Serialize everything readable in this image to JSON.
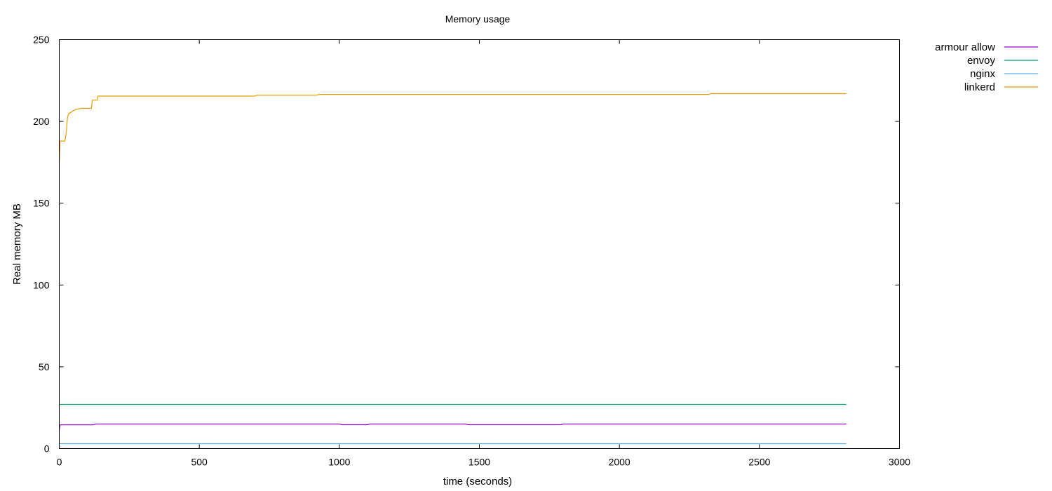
{
  "chart_data": {
    "type": "line",
    "title": "Memory usage",
    "xlabel": "time (seconds)",
    "ylabel": "Real memory MB",
    "xlim": [
      0,
      3000
    ],
    "ylim": [
      0,
      250
    ],
    "xticks": [
      0,
      500,
      1000,
      1500,
      2000,
      2500,
      3000
    ],
    "yticks": [
      0,
      50,
      100,
      150,
      200,
      250
    ],
    "grid": false,
    "legend_position": "outside-top-right",
    "series": [
      {
        "name": "armour allow",
        "color": "#9400d3",
        "x": [
          0,
          1,
          2,
          3,
          120,
          130,
          1000,
          1010,
          1100,
          1110,
          1450,
          1460,
          1790,
          1800,
          1900,
          1910,
          2810
        ],
        "y": [
          11,
          13,
          14,
          14.5,
          14.5,
          15,
          15,
          14.6,
          14.6,
          15,
          15,
          14.6,
          14.6,
          15,
          15,
          15,
          15
        ]
      },
      {
        "name": "envoy",
        "color": "#009e73",
        "x": [
          0,
          2810
        ],
        "y": [
          27,
          27
        ]
      },
      {
        "name": "nginx",
        "color": "#56b4e9",
        "x": [
          0,
          2810
        ],
        "y": [
          3,
          3
        ]
      },
      {
        "name": "linkerd",
        "color": "#e69f00",
        "x": [
          0,
          2,
          3,
          8,
          10,
          20,
          22,
          26,
          28,
          30,
          35,
          38,
          45,
          55,
          65,
          80,
          115,
          118,
          135,
          138,
          700,
          705,
          920,
          925,
          2320,
          2325,
          2810
        ],
        "y": [
          176,
          183,
          188,
          188,
          188,
          188,
          190,
          195,
          200,
          203,
          205,
          205,
          206,
          207,
          207.5,
          208,
          208,
          213,
          213,
          215.5,
          215.5,
          216,
          216,
          216.5,
          216.5,
          217,
          217
        ]
      }
    ]
  }
}
